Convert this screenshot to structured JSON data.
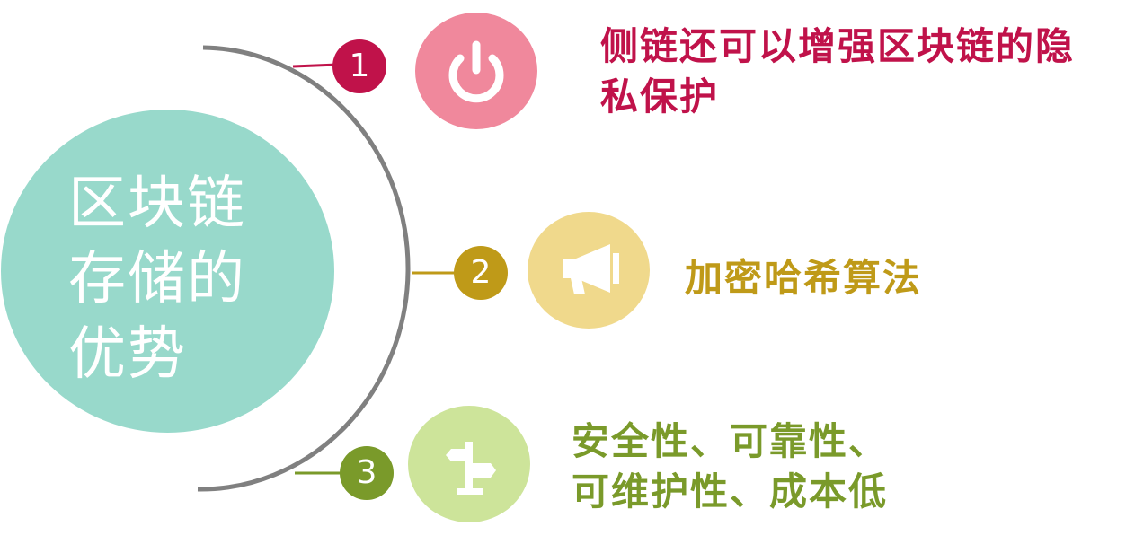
{
  "colors": {
    "main_circle": "#98d9cb",
    "arc": "#808080",
    "item1": "#c0124a",
    "item1_icon_bg": "#f0889c",
    "item2": "#bf9a18",
    "item2_icon_bg": "#f0d98c",
    "item3": "#7a9a2a",
    "item3_icon_bg": "#cde49a"
  },
  "main": {
    "title": "区块链存储的优势"
  },
  "items": [
    {
      "number": "1",
      "text": "侧链还可以增强区块链的隐私保护",
      "icon": "power-icon"
    },
    {
      "number": "2",
      "text": "加密哈希算法",
      "icon": "megaphone-icon"
    },
    {
      "number": "3",
      "text": "安全性、可靠性、可维护性、成本低",
      "icon": "signpost-icon"
    }
  ]
}
